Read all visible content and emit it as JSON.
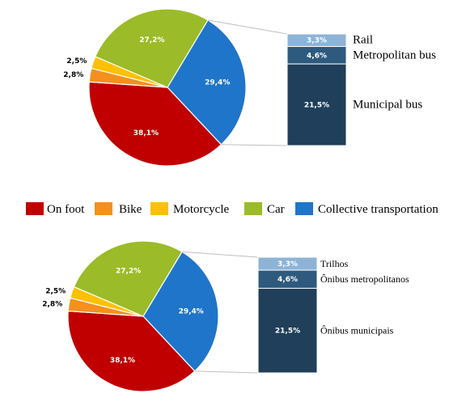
{
  "colors": {
    "on_foot": "#C00000",
    "bike": "#F5901E",
    "motorcycle": "#FFC000",
    "car": "#9BBB29",
    "collective": "#1F75C9",
    "rail": "#8DB4D6",
    "metro_bus": "#2E5A7E",
    "municipal_bus": "#1F3F5A",
    "connector": "#BFBFBF"
  },
  "legend": [
    {
      "key": "on_foot",
      "label": "On foot"
    },
    {
      "key": "bike",
      "label": "Bike"
    },
    {
      "key": "motorcycle",
      "label": "Motorcycle"
    },
    {
      "key": "car",
      "label": "Car"
    },
    {
      "key": "collective",
      "label": "Collective  transportation"
    }
  ],
  "chart_data": [
    {
      "type": "pie",
      "slices": [
        {
          "key": "collective",
          "value": 29.4,
          "label": "29,4%"
        },
        {
          "key": "on_foot",
          "value": 38.1,
          "label": "38,1%"
        },
        {
          "key": "bike",
          "value": 2.8,
          "label": "2,8%"
        },
        {
          "key": "motorcycle",
          "value": 2.5,
          "label": "2,5%"
        },
        {
          "key": "car",
          "value": 27.2,
          "label": "27,2%"
        }
      ],
      "stack": [
        {
          "key": "rail",
          "value": 3.3,
          "label": "3,3%",
          "name": "Rail"
        },
        {
          "key": "metro_bus",
          "value": 4.6,
          "label": "4,6%",
          "name": "Metropolitan bus"
        },
        {
          "key": "municipal_bus",
          "value": 21.5,
          "label": "21,5%",
          "name": "Municipal bus"
        }
      ]
    },
    {
      "type": "pie",
      "slices": [
        {
          "key": "collective",
          "value": 29.4,
          "label": "29,4%"
        },
        {
          "key": "on_foot",
          "value": 38.1,
          "label": "38,1%"
        },
        {
          "key": "bike",
          "value": 2.8,
          "label": "2,8%"
        },
        {
          "key": "motorcycle",
          "value": 2.5,
          "label": "2,5%"
        },
        {
          "key": "car",
          "value": 27.2,
          "label": "27,2%"
        }
      ],
      "stack": [
        {
          "key": "rail",
          "value": 3.3,
          "label": "3,3%",
          "name": "Trilhos"
        },
        {
          "key": "metro_bus",
          "value": 4.6,
          "label": "4,6%",
          "name": "Ônibus metropolitanos"
        },
        {
          "key": "municipal_bus",
          "value": 21.5,
          "label": "21,5%",
          "name": "Ônibus municipais"
        }
      ]
    }
  ]
}
